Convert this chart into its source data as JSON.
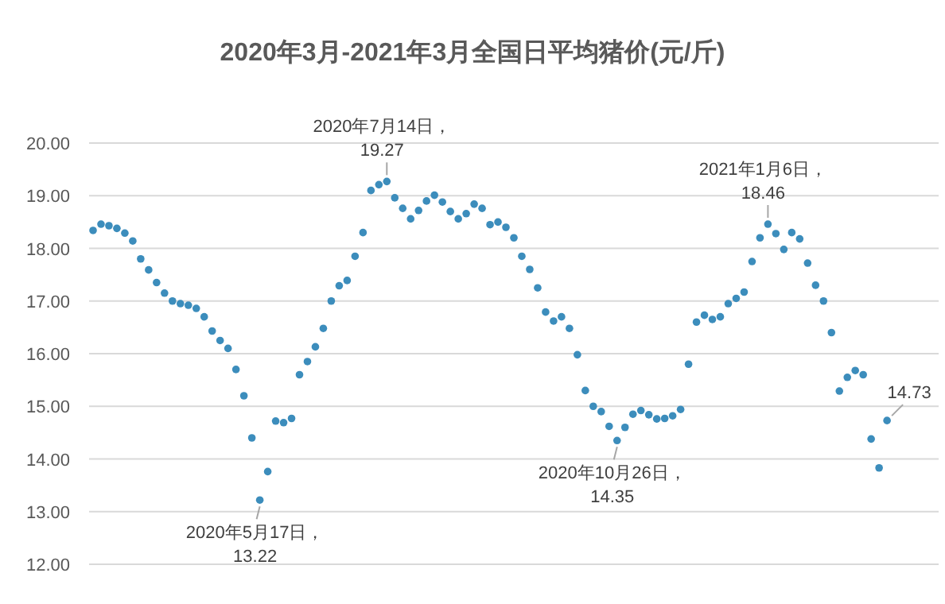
{
  "chart_data": {
    "type": "scatter",
    "title": "2020年3月-2021年3月全国日平均猪价(元/斤)",
    "categories": [
      null,
      null,
      null,
      null,
      null,
      null,
      null,
      null,
      null,
      null,
      null,
      null,
      null,
      null,
      null,
      null,
      null,
      null,
      null,
      null,
      null,
      null,
      null,
      null,
      null,
      null,
      null,
      null,
      null,
      null,
      null,
      null,
      null,
      null,
      null,
      null,
      null,
      null,
      null,
      null,
      null,
      null,
      null,
      null,
      null,
      null,
      null,
      null,
      null,
      null,
      null,
      null,
      null,
      null,
      null,
      null,
      null,
      null,
      null,
      null,
      null,
      null,
      null,
      null,
      null,
      null,
      null,
      null,
      null,
      null,
      null,
      null,
      null,
      null,
      null,
      null,
      null,
      null,
      null,
      null,
      null,
      null,
      null,
      null,
      null,
      null,
      null,
      null,
      null,
      null,
      null,
      null,
      null,
      null,
      null,
      null,
      null,
      null,
      null,
      null,
      null,
      null,
      null,
      null,
      null,
      null,
      null
    ],
    "series": [
      {
        "color": "#3c8dbc",
        "values": [
          18.34,
          18.46,
          18.43,
          18.38,
          18.29,
          18.14,
          17.8,
          17.59,
          17.35,
          17.15,
          17.0,
          16.95,
          16.92,
          16.86,
          16.7,
          16.43,
          16.25,
          16.1,
          15.7,
          15.2,
          14.4,
          13.22,
          13.76,
          14.72,
          14.69,
          14.77,
          15.6,
          15.85,
          16.13,
          16.48,
          17.0,
          17.29,
          17.39,
          17.85,
          18.3,
          19.1,
          19.21,
          19.27,
          18.96,
          18.76,
          18.56,
          18.72,
          18.9,
          19.01,
          18.88,
          18.7,
          18.56,
          18.66,
          18.84,
          18.76,
          18.45,
          18.5,
          18.4,
          18.2,
          17.85,
          17.6,
          17.25,
          16.79,
          16.62,
          16.7,
          16.48,
          15.98,
          15.3,
          15.0,
          14.9,
          14.62,
          14.35,
          14.6,
          14.85,
          14.92,
          14.84,
          14.76,
          14.77,
          14.82,
          14.94,
          15.8,
          16.6,
          16.73,
          16.65,
          16.7,
          16.95,
          17.05,
          17.17,
          17.75,
          18.2,
          18.46,
          18.28,
          17.98,
          18.3,
          18.18,
          17.72,
          17.3,
          17.0,
          16.4,
          15.29,
          15.55,
          15.68,
          15.6,
          14.38,
          13.83,
          14.73,
          null,
          null,
          null,
          null,
          null,
          null
        ],
        "value_labels": [
          null,
          null,
          null,
          null,
          null,
          null,
          null,
          null,
          null,
          null,
          null,
          null,
          null,
          null,
          null,
          null,
          null,
          null,
          null,
          null,
          null,
          "2020年5月17日，\n13.22",
          null,
          null,
          null,
          null,
          null,
          null,
          null,
          null,
          null,
          null,
          null,
          null,
          null,
          null,
          null,
          "2020年7月14日，\n19.27",
          null,
          null,
          null,
          null,
          null,
          null,
          null,
          null,
          null,
          null,
          null,
          null,
          null,
          null,
          null,
          null,
          null,
          null,
          null,
          null,
          null,
          null,
          null,
          null,
          null,
          null,
          null,
          null,
          "2020年10月26日，\n14.35",
          null,
          null,
          null,
          null,
          null,
          null,
          null,
          null,
          null,
          null,
          null,
          null,
          null,
          null,
          null,
          null,
          null,
          null,
          "2021年1月6日，\n18.46",
          null,
          null,
          null,
          null,
          null,
          null,
          null,
          null,
          null,
          null,
          null,
          null,
          null,
          null,
          "14.73",
          null,
          null,
          null,
          null,
          null,
          null
        ]
      }
    ],
    "ylim": [
      12,
      20
    ],
    "yticks": [
      {
        "value": 12,
        "label": "12.00"
      },
      {
        "value": 13,
        "label": "13.00"
      },
      {
        "value": 14,
        "label": "14.00"
      },
      {
        "value": 15,
        "label": "15.00"
      },
      {
        "value": 16,
        "label": "16.00"
      },
      {
        "value": 17,
        "label": "17.00"
      },
      {
        "value": 18,
        "label": "18.00"
      },
      {
        "value": 19,
        "label": "19.00"
      },
      {
        "value": 20,
        "label": "20.00"
      }
    ],
    "grid": "y",
    "marker": "circle"
  }
}
